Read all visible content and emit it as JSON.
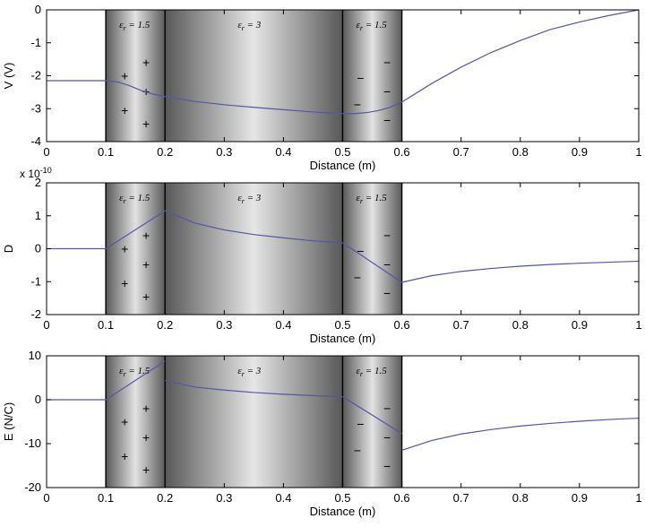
{
  "chart_data": [
    {
      "type": "line",
      "panel": "potential",
      "xlabel": "Distance (m)",
      "ylabel": "V (V)",
      "xlim": [
        0,
        1
      ],
      "ylim": [
        -4,
        0
      ],
      "x_ticks": [
        "0",
        "0.1",
        "0.2",
        "0.3",
        "0.4",
        "0.5",
        "0.6",
        "0.7",
        "0.8",
        "0.9",
        "1"
      ],
      "y_ticks": [
        "-4",
        "-3",
        "-2",
        "-1",
        "0"
      ],
      "series": [
        {
          "segments": [
            {
              "x": [
                0,
                0.1,
                0.12,
                0.14,
                0.16,
                0.18,
                0.2,
                0.25,
                0.3,
                0.35,
                0.4,
                0.45,
                0.5,
                0.52,
                0.54,
                0.56,
                0.58,
                0.6,
                0.65,
                0.7,
                0.75,
                0.8,
                0.85,
                0.9,
                0.95,
                1.0
              ],
              "y": [
                -2.15,
                -2.15,
                -2.19,
                -2.3,
                -2.45,
                -2.56,
                -2.63,
                -2.78,
                -2.88,
                -2.96,
                -3.03,
                -3.1,
                -3.15,
                -3.15,
                -3.12,
                -3.06,
                -2.96,
                -2.8,
                -2.24,
                -1.74,
                -1.3,
                -0.93,
                -0.6,
                -0.37,
                -0.17,
                0.0
              ]
            }
          ]
        }
      ]
    },
    {
      "type": "line",
      "panel": "displacement",
      "xlabel": "Distance (m)",
      "ylabel": "D",
      "exponent_label": "x 10",
      "exponent_value": "-10",
      "xlim": [
        0,
        1
      ],
      "ylim": [
        -2,
        2
      ],
      "x_ticks": [
        "0",
        "0.1",
        "0.2",
        "0.3",
        "0.4",
        "0.5",
        "0.6",
        "0.7",
        "0.8",
        "0.9",
        "1"
      ],
      "y_ticks": [
        "-2",
        "-1",
        "0",
        "1",
        "2"
      ],
      "series": [
        {
          "segments": [
            {
              "x": [
                0,
                0.1,
                0.2
              ],
              "y": [
                0,
                0,
                1.15
              ]
            },
            {
              "x": [
                0.2,
                0.25,
                0.3,
                0.35,
                0.4,
                0.45,
                0.5
              ],
              "y": [
                1.15,
                0.78,
                0.57,
                0.43,
                0.33,
                0.24,
                0.18
              ]
            },
            {
              "x": [
                0.5,
                0.6
              ],
              "y": [
                0.18,
                -1.02
              ]
            },
            {
              "x": [
                0.6,
                0.65,
                0.7,
                0.75,
                0.8,
                0.85,
                0.9,
                0.95,
                1.0
              ],
              "y": [
                -1.02,
                -0.82,
                -0.69,
                -0.6,
                -0.53,
                -0.48,
                -0.44,
                -0.41,
                -0.38
              ]
            }
          ]
        }
      ]
    },
    {
      "type": "line",
      "panel": "field",
      "xlabel": "Distance (m)",
      "ylabel": "E (N/C)",
      "xlim": [
        0,
        1
      ],
      "ylim": [
        -20,
        10
      ],
      "x_ticks": [
        "0",
        "0.1",
        "0.2",
        "0.3",
        "0.4",
        "0.5",
        "0.6",
        "0.7",
        "0.8",
        "0.9",
        "1"
      ],
      "y_ticks": [
        "-20",
        "-10",
        "0",
        "10"
      ],
      "series": [
        {
          "segments": [
            {
              "x": [
                0,
                0.1,
                0.2
              ],
              "y": [
                0,
                0,
                8.8
              ]
            },
            {
              "x": [
                0.2,
                0.25,
                0.3,
                0.35,
                0.4,
                0.45,
                0.5
              ],
              "y": [
                4.4,
                2.9,
                2.2,
                1.65,
                1.25,
                0.95,
                0.7
              ]
            },
            {
              "x": [
                0.5,
                0.6
              ],
              "y": [
                0.7,
                -7.7
              ]
            },
            {
              "x": [
                0.6,
                0.65,
                0.7,
                0.75,
                0.8,
                0.85,
                0.9,
                0.95,
                1.0
              ],
              "y": [
                -11.5,
                -9.3,
                -7.8,
                -6.8,
                -6.0,
                -5.4,
                -4.9,
                -4.5,
                -4.2
              ]
            }
          ]
        }
      ]
    }
  ],
  "regions": [
    {
      "x0": 0.1,
      "x1": 0.2,
      "eps_symbol": "ε",
      "eps_sub": "r",
      "eps_value": "= 1.5",
      "charge": "+"
    },
    {
      "x0": 0.2,
      "x1": 0.5,
      "eps_symbol": "ε",
      "eps_sub": "r",
      "eps_value": "= 3",
      "charge": ""
    },
    {
      "x0": 0.5,
      "x1": 0.6,
      "eps_symbol": "ε",
      "eps_sub": "r",
      "eps_value": "= 1.5",
      "charge": "−"
    }
  ],
  "colors": {
    "line": "#5555aa",
    "axes": "#000000",
    "shade_dark": "#5a5a5a",
    "shade_light": "#e6e6e6"
  }
}
